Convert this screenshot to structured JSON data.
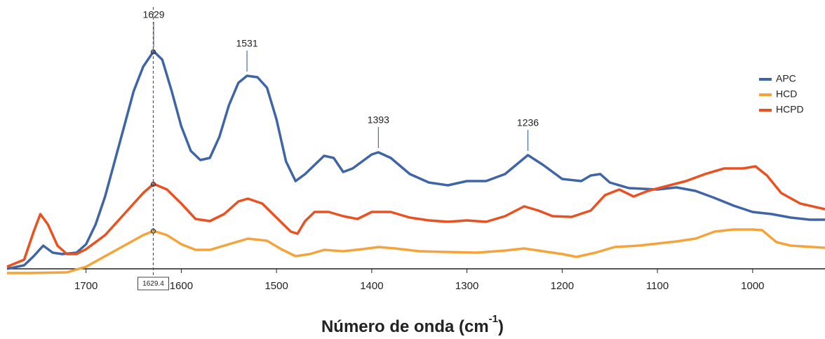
{
  "chart_data": {
    "type": "line",
    "xlabel": {
      "text": "Número de onda (cm",
      "sup": "-1",
      "close": ")"
    },
    "xlim": [
      1783,
      924
    ],
    "xticks": [
      1700,
      1600,
      1500,
      1400,
      1300,
      1200,
      1100,
      1000
    ],
    "ylim": [
      0,
      393
    ],
    "peaks": [
      1629,
      1531,
      1393,
      1236
    ],
    "cursor": 1629.4,
    "legend": "right",
    "series": [
      {
        "name": "APC",
        "color": "#4065a6",
        "x": [
          1783,
          1765,
          1755,
          1745,
          1735,
          1725,
          1710,
          1700,
          1690,
          1680,
          1670,
          1660,
          1650,
          1640,
          1629,
          1620,
          1610,
          1600,
          1590,
          1580,
          1570,
          1560,
          1550,
          1540,
          1531,
          1520,
          1510,
          1500,
          1490,
          1480,
          1470,
          1460,
          1450,
          1440,
          1430,
          1420,
          1410,
          1400,
          1393,
          1380,
          1360,
          1340,
          1320,
          1300,
          1280,
          1260,
          1236,
          1220,
          1200,
          1180,
          1170,
          1160,
          1150,
          1130,
          1100,
          1080,
          1060,
          1040,
          1020,
          1000,
          980,
          960,
          940,
          924
        ],
        "values": [
          10,
          15,
          28,
          43,
          33,
          31,
          33,
          45,
          73,
          113,
          163,
          213,
          263,
          298,
          320,
          308,
          263,
          213,
          178,
          165,
          168,
          198,
          243,
          275,
          285,
          283,
          268,
          223,
          163,
          135,
          145,
          158,
          171,
          168,
          148,
          153,
          163,
          173,
          176,
          168,
          145,
          133,
          129,
          135,
          135,
          145,
          172,
          158,
          138,
          135,
          143,
          145,
          133,
          125,
          123,
          126,
          121,
          111,
          100,
          91,
          88,
          83,
          80,
          80
        ]
      },
      {
        "name": "HCD",
        "color": "#f5a43b",
        "x": [
          1783,
          1760,
          1720,
          1700,
          1680,
          1660,
          1640,
          1629,
          1615,
          1600,
          1585,
          1570,
          1550,
          1530,
          1510,
          1495,
          1480,
          1465,
          1450,
          1430,
          1410,
          1393,
          1375,
          1350,
          1320,
          1290,
          1260,
          1240,
          1220,
          1200,
          1185,
          1165,
          1145,
          1120,
          1100,
          1080,
          1060,
          1040,
          1020,
          1000,
          990,
          975,
          960,
          924
        ],
        "values": [
          4,
          4,
          5,
          13,
          28,
          43,
          58,
          64,
          58,
          45,
          37,
          37,
          45,
          53,
          50,
          38,
          28,
          31,
          37,
          35,
          38,
          41,
          39,
          35,
          34,
          33,
          36,
          39,
          35,
          31,
          27,
          33,
          41,
          43,
          46,
          49,
          53,
          63,
          66,
          66,
          65,
          48,
          43,
          40
        ]
      },
      {
        "name": "HCPD",
        "color": "#ea5120",
        "x": [
          1783,
          1765,
          1755,
          1748,
          1740,
          1730,
          1720,
          1710,
          1700,
          1680,
          1660,
          1640,
          1629,
          1615,
          1600,
          1585,
          1570,
          1555,
          1540,
          1530,
          1515,
          1500,
          1485,
          1478,
          1470,
          1460,
          1445,
          1430,
          1415,
          1400,
          1380,
          1360,
          1340,
          1320,
          1300,
          1280,
          1260,
          1240,
          1225,
          1210,
          1190,
          1170,
          1155,
          1140,
          1125,
          1110,
          1090,
          1070,
          1050,
          1030,
          1010,
          997,
          985,
          970,
          950,
          924
        ],
        "values": [
          13,
          23,
          63,
          88,
          73,
          43,
          31,
          31,
          38,
          58,
          88,
          118,
          131,
          123,
          103,
          81,
          78,
          88,
          106,
          110,
          103,
          83,
          63,
          60,
          78,
          91,
          91,
          85,
          81,
          91,
          91,
          83,
          79,
          77,
          79,
          77,
          85,
          99,
          93,
          85,
          84,
          93,
          115,
          123,
          113,
          121,
          128,
          135,
          145,
          153,
          153,
          156,
          143,
          118,
          103,
          95
        ]
      }
    ]
  }
}
